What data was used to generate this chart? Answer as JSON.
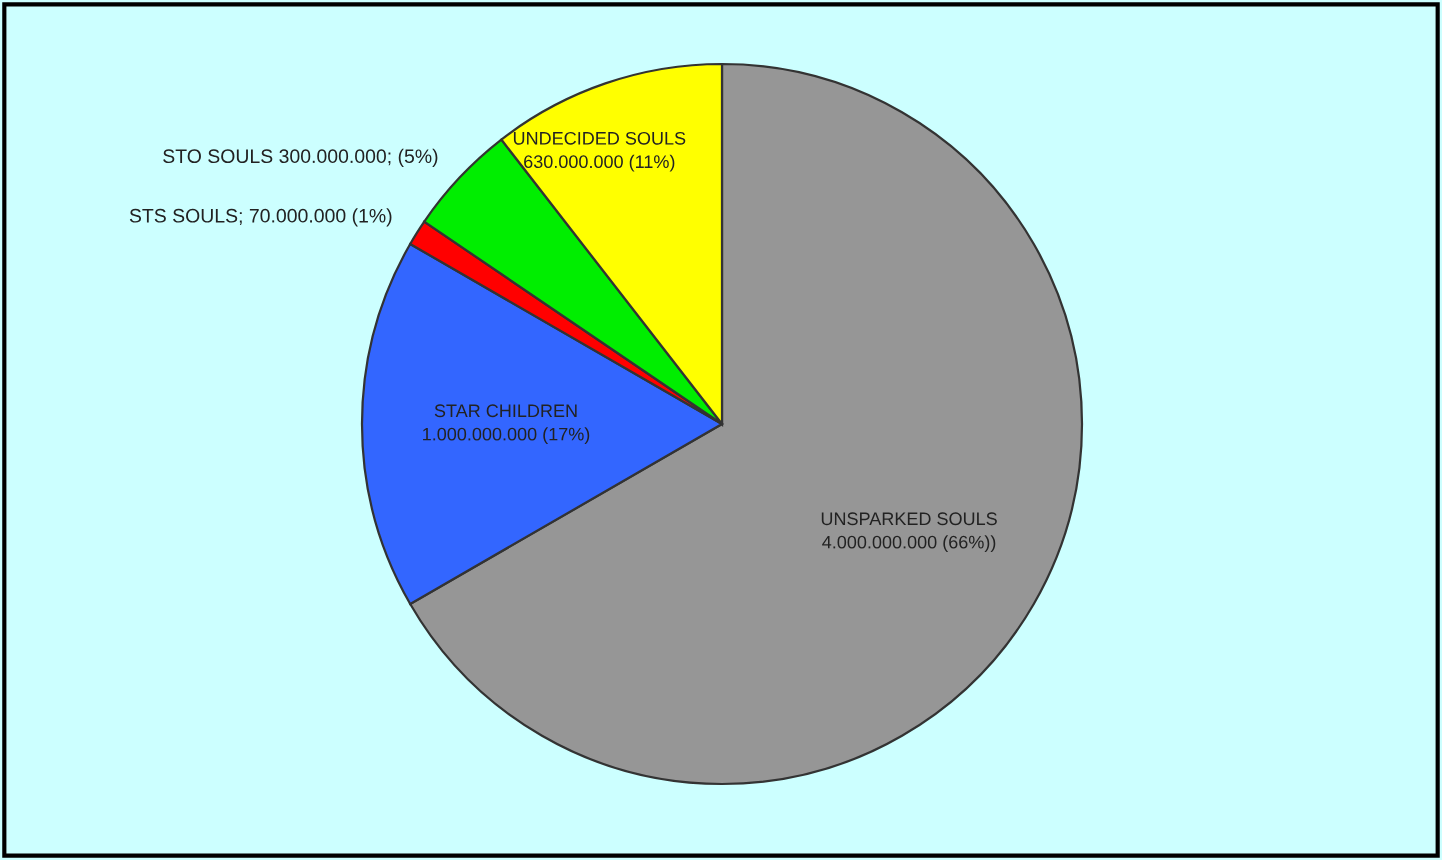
{
  "chart_data": {
    "type": "pie",
    "categories": [
      null,
      null,
      null,
      null,
      null
    ],
    "values": [
      4000000000,
      1000000000,
      70000000,
      300000000,
      630000000
    ],
    "colors": [
      "#969696",
      "#3366ff",
      "#ff0000",
      "#00ee00",
      "#ffff00"
    ],
    "value_labels": [
      "UNSPARKED SOULS\n4.000.000.000 (66%))",
      "STAR CHILDREN\n1.000.000.000 (17%)",
      "STS SOULS; 70.000.000 (1%)",
      "STO SOULS 300.000.000; (5%)",
      "UNDECIDED SOULS\n630.000.000 (11%)"
    ],
    "legend": false
  }
}
